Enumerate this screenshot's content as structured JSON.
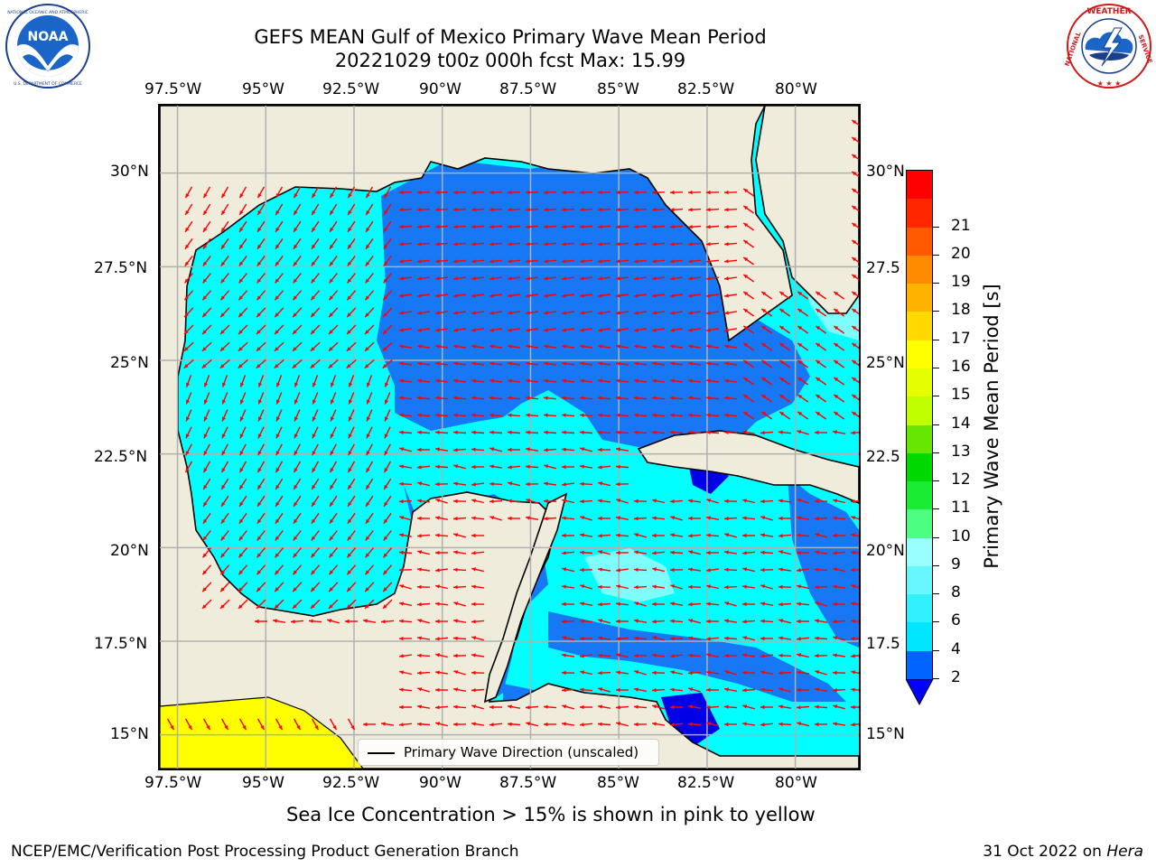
{
  "title": {
    "line1": "GEFS MEAN Gulf of Mexico Primary Wave Mean Period",
    "line2": "20221029 t00z 000h fcst   Max: 15.99"
  },
  "logos": {
    "left": {
      "name": "NOAA",
      "ring_text": "NATIONAL OCEANIC AND ATMOSPHERIC ADMINISTRATION · U.S. DEPARTMENT OF COMMERCE"
    },
    "right": {
      "name": "NATIONAL WEATHER SERVICE"
    }
  },
  "axes": {
    "lon_ticks": [
      "97.5°W",
      "95°W",
      "92.5°W",
      "90°W",
      "87.5°W",
      "85°W",
      "82.5°W",
      "80°W"
    ],
    "lat_ticks_left": [
      "30°N",
      "27.5°N",
      "25°N",
      "22.5°N",
      "20°N",
      "17.5°N",
      "15°N"
    ],
    "lat_ticks_right": [
      "30°N",
      "27.5",
      "25°N",
      "22.5",
      "20°N",
      "17.5",
      "15°N"
    ],
    "lon_range": [
      -98,
      -78.2
    ],
    "lat_range": [
      14.1,
      31.8
    ]
  },
  "colorbar": {
    "label": "Primary Wave Mean Period [s]",
    "ticks": [
      "2",
      "4",
      "6",
      "8",
      "9",
      "10",
      "11",
      "12",
      "13",
      "14",
      "15",
      "16",
      "17",
      "18",
      "19",
      "20",
      "21"
    ],
    "colors": [
      "#0064ff",
      "#00e6ff",
      "#33f0ff",
      "#66f7ff",
      "#99ffff",
      "#4dff80",
      "#1aeb33",
      "#00d900",
      "#66e600",
      "#bfff00",
      "#e6ff00",
      "#ffff00",
      "#ffd900",
      "#ffb300",
      "#ff8c00",
      "#ff5a00",
      "#ff2600",
      "#ff0000"
    ],
    "extend_color": "#0000ff"
  },
  "legend": {
    "label": "Primary Wave Direction (unscaled)"
  },
  "note": "Sea Ice Concentration > 15% is shown in pink to yellow",
  "footer": {
    "left": "NCEP/EMC/Verification Post Processing Product Generation Branch",
    "right_date": "31 Oct 2022 on",
    "right_host": "Hera"
  },
  "map_colors": {
    "land": "#efecdc",
    "ocean_low": "#1678f4",
    "ocean_mid": "#00ffff",
    "ocean_light": "#7ffcfc",
    "deep_blue": "#0000e6",
    "yellow_area": "#ffff00",
    "arrow": "#ff0000",
    "grid": "#b0b0b0"
  }
}
